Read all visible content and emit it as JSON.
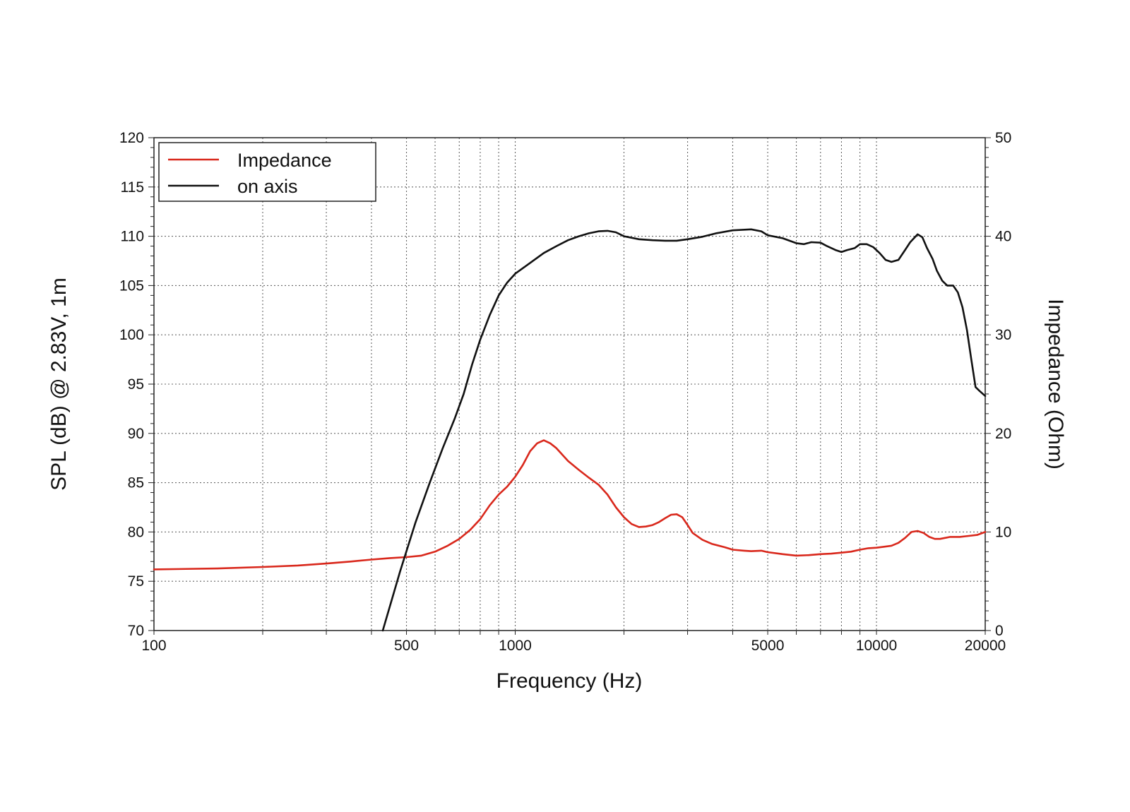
{
  "chart_data": {
    "type": "line",
    "title": "",
    "xlabel": "Frequency (Hz)",
    "ylabel": "SPL (dB) @ 2.83V, 1m",
    "y2label": "Impedance (Ohm)",
    "x_scale": "log",
    "xlim": [
      100,
      20000
    ],
    "ylim": [
      70,
      120
    ],
    "y2lim": [
      0,
      50
    ],
    "grid": true,
    "legend": "top-left",
    "x_ticks": [
      100,
      500,
      1000,
      5000,
      10000,
      20000
    ],
    "x_tick_labels": [
      "100",
      "500",
      "1000",
      "5000",
      "10000",
      "20000"
    ],
    "y_ticks": [
      70,
      75,
      80,
      85,
      90,
      95,
      100,
      105,
      110,
      115,
      120
    ],
    "y_tick_labels": [
      "70",
      "75",
      "80",
      "85",
      "90",
      "95",
      "100",
      "105",
      "110",
      "115",
      "120"
    ],
    "y2_ticks": [
      0,
      10,
      20,
      30,
      40,
      50
    ],
    "y2_tick_labels": [
      "0",
      "10",
      "20",
      "30",
      "40",
      "50"
    ],
    "series": [
      {
        "name": "Impedance",
        "axis": "right",
        "color": "#d9281c",
        "points": [
          [
            100,
            6.2
          ],
          [
            150,
            6.3
          ],
          [
            200,
            6.45
          ],
          [
            250,
            6.6
          ],
          [
            300,
            6.8
          ],
          [
            350,
            7.0
          ],
          [
            400,
            7.2
          ],
          [
            450,
            7.35
          ],
          [
            500,
            7.45
          ],
          [
            550,
            7.6
          ],
          [
            600,
            8.0
          ],
          [
            650,
            8.6
          ],
          [
            700,
            9.3
          ],
          [
            750,
            10.2
          ],
          [
            800,
            11.3
          ],
          [
            850,
            12.7
          ],
          [
            900,
            13.8
          ],
          [
            950,
            14.6
          ],
          [
            1000,
            15.6
          ],
          [
            1050,
            16.8
          ],
          [
            1100,
            18.2
          ],
          [
            1150,
            19.0
          ],
          [
            1200,
            19.3
          ],
          [
            1250,
            19.0
          ],
          [
            1300,
            18.5
          ],
          [
            1400,
            17.2
          ],
          [
            1500,
            16.3
          ],
          [
            1600,
            15.5
          ],
          [
            1700,
            14.8
          ],
          [
            1800,
            13.8
          ],
          [
            1900,
            12.5
          ],
          [
            2000,
            11.5
          ],
          [
            2100,
            10.8
          ],
          [
            2200,
            10.5
          ],
          [
            2300,
            10.55
          ],
          [
            2400,
            10.7
          ],
          [
            2500,
            11.0
          ],
          [
            2600,
            11.4
          ],
          [
            2700,
            11.75
          ],
          [
            2800,
            11.8
          ],
          [
            2900,
            11.5
          ],
          [
            3000,
            10.7
          ],
          [
            3100,
            9.9
          ],
          [
            3300,
            9.2
          ],
          [
            3500,
            8.8
          ],
          [
            3800,
            8.45
          ],
          [
            4000,
            8.2
          ],
          [
            4300,
            8.1
          ],
          [
            4500,
            8.05
          ],
          [
            4800,
            8.1
          ],
          [
            5000,
            7.95
          ],
          [
            5500,
            7.75
          ],
          [
            6000,
            7.6
          ],
          [
            6500,
            7.65
          ],
          [
            7000,
            7.75
          ],
          [
            7500,
            7.8
          ],
          [
            8000,
            7.9
          ],
          [
            8500,
            8.0
          ],
          [
            9000,
            8.2
          ],
          [
            9500,
            8.35
          ],
          [
            10000,
            8.4
          ],
          [
            10500,
            8.5
          ],
          [
            11000,
            8.6
          ],
          [
            11500,
            8.9
          ],
          [
            12000,
            9.4
          ],
          [
            12500,
            10.0
          ],
          [
            13000,
            10.1
          ],
          [
            13500,
            9.9
          ],
          [
            14000,
            9.5
          ],
          [
            14500,
            9.3
          ],
          [
            15000,
            9.3
          ],
          [
            16000,
            9.5
          ],
          [
            17000,
            9.5
          ],
          [
            18000,
            9.6
          ],
          [
            19000,
            9.7
          ],
          [
            20000,
            10.0
          ]
        ]
      },
      {
        "name": "on axis",
        "axis": "left",
        "color": "#111111",
        "points": [
          [
            430,
            70.0
          ],
          [
            480,
            76.0
          ],
          [
            530,
            81.0
          ],
          [
            580,
            85.0
          ],
          [
            630,
            88.5
          ],
          [
            680,
            91.5
          ],
          [
            720,
            94.0
          ],
          [
            760,
            97.0
          ],
          [
            800,
            99.5
          ],
          [
            850,
            102.0
          ],
          [
            900,
            104.0
          ],
          [
            950,
            105.3
          ],
          [
            1000,
            106.2
          ],
          [
            1100,
            107.3
          ],
          [
            1200,
            108.3
          ],
          [
            1300,
            109.0
          ],
          [
            1400,
            109.6
          ],
          [
            1500,
            110.0
          ],
          [
            1600,
            110.3
          ],
          [
            1700,
            110.5
          ],
          [
            1800,
            110.55
          ],
          [
            1900,
            110.4
          ],
          [
            2000,
            110.0
          ],
          [
            2200,
            109.7
          ],
          [
            2400,
            109.6
          ],
          [
            2600,
            109.55
          ],
          [
            2800,
            109.55
          ],
          [
            3000,
            109.7
          ],
          [
            3300,
            109.95
          ],
          [
            3600,
            110.3
          ],
          [
            4000,
            110.6
          ],
          [
            4500,
            110.7
          ],
          [
            4800,
            110.5
          ],
          [
            5000,
            110.1
          ],
          [
            5500,
            109.8
          ],
          [
            6000,
            109.3
          ],
          [
            6300,
            109.2
          ],
          [
            6600,
            109.4
          ],
          [
            7000,
            109.35
          ],
          [
            7300,
            109.0
          ],
          [
            7700,
            108.6
          ],
          [
            8000,
            108.4
          ],
          [
            8300,
            108.6
          ],
          [
            8700,
            108.8
          ],
          [
            9000,
            109.2
          ],
          [
            9400,
            109.2
          ],
          [
            9800,
            108.9
          ],
          [
            10200,
            108.3
          ],
          [
            10600,
            107.6
          ],
          [
            11000,
            107.4
          ],
          [
            11500,
            107.6
          ],
          [
            12000,
            108.6
          ],
          [
            12400,
            109.4
          ],
          [
            13000,
            110.2
          ],
          [
            13400,
            109.9
          ],
          [
            13800,
            108.8
          ],
          [
            14300,
            107.7
          ],
          [
            14700,
            106.5
          ],
          [
            15200,
            105.5
          ],
          [
            15700,
            105.0
          ],
          [
            16300,
            105.0
          ],
          [
            16800,
            104.3
          ],
          [
            17300,
            102.8
          ],
          [
            17800,
            100.5
          ],
          [
            18300,
            97.5
          ],
          [
            18800,
            94.7
          ],
          [
            19300,
            94.3
          ],
          [
            20000,
            93.8
          ]
        ]
      }
    ]
  }
}
